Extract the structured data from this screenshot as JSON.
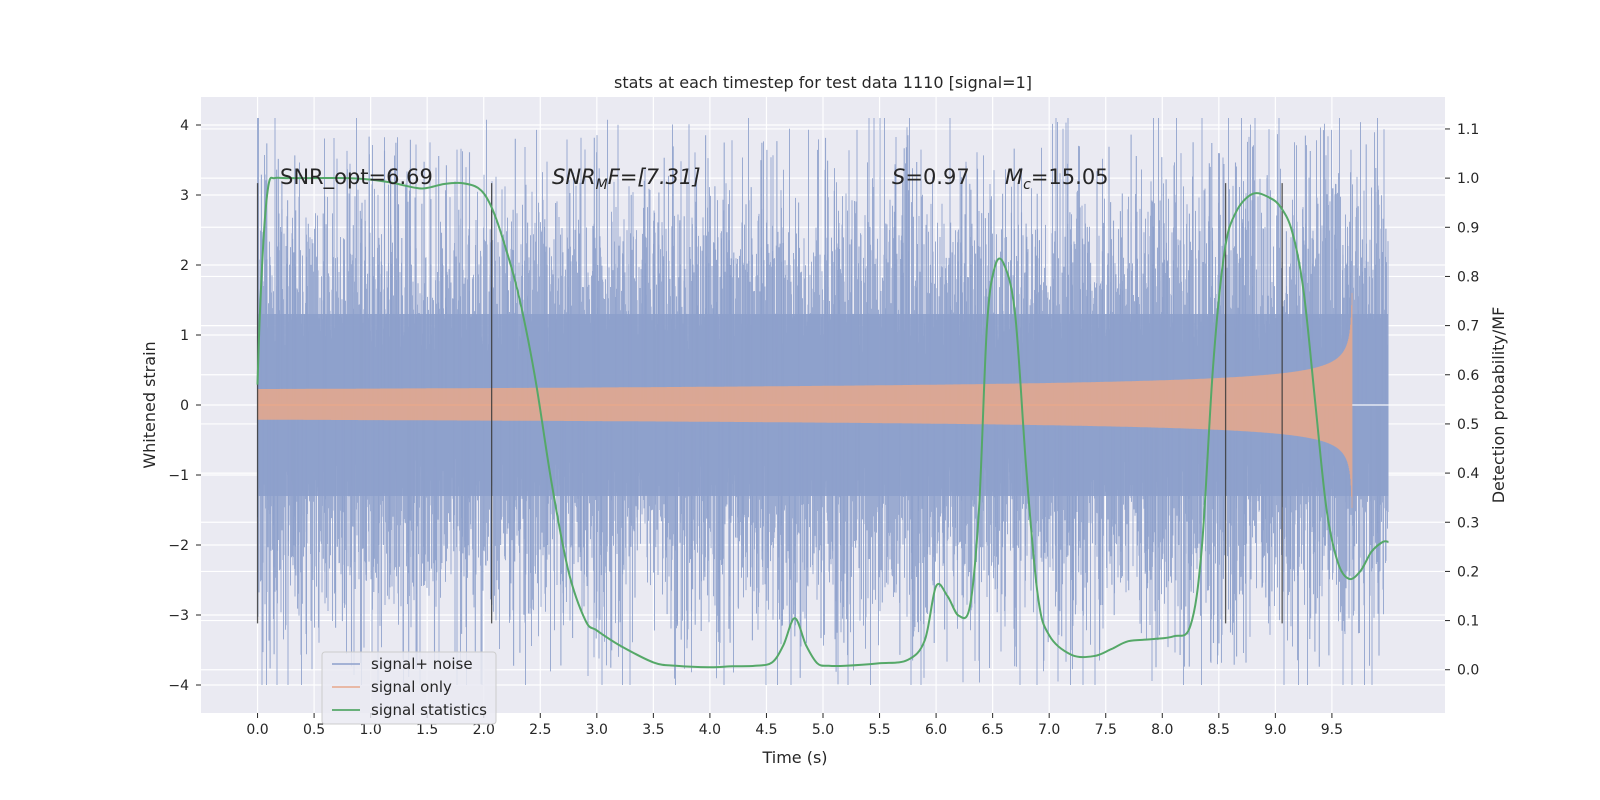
{
  "chart_data": {
    "type": "line",
    "title": "stats at each timestep for test data 1110 [signal=1]",
    "xlabel": "Time (s)",
    "ylabel": "Whitened strain",
    "y2label": "Detection probability/MF",
    "xlim": [
      -0.5,
      10.5
    ],
    "ylim": [
      -4.4,
      4.4
    ],
    "y2lim": [
      -0.088,
      1.165
    ],
    "x_ticks": [
      0.0,
      0.5,
      1.0,
      1.5,
      2.0,
      2.5,
      3.0,
      3.5,
      4.0,
      4.5,
      5.0,
      5.5,
      6.0,
      6.5,
      7.0,
      7.5,
      8.0,
      8.5,
      9.0,
      9.5
    ],
    "x_tick_labels": [
      "0.0",
      "0.5",
      "1.0",
      "1.5",
      "2.0",
      "2.5",
      "3.0",
      "3.5",
      "4.0",
      "4.5",
      "5.0",
      "5.5",
      "6.0",
      "6.5",
      "7.0",
      "7.5",
      "8.0",
      "8.5",
      "9.0",
      "9.5"
    ],
    "y_ticks": [
      -4,
      -3,
      -2,
      -1,
      0,
      1,
      2,
      3,
      4
    ],
    "y_tick_labels": [
      "−4",
      "−3",
      "−2",
      "−1",
      "0",
      "1",
      "2",
      "3",
      "4"
    ],
    "y2_ticks": [
      0.0,
      0.1,
      0.2,
      0.3,
      0.4,
      0.5,
      0.6,
      0.7,
      0.8,
      0.9,
      1.0,
      1.1
    ],
    "y2_tick_labels": [
      "0.0",
      "0.1",
      "0.2",
      "0.3",
      "0.4",
      "0.5",
      "0.6",
      "0.7",
      "0.8",
      "0.9",
      "1.0",
      "1.1"
    ],
    "grid": true,
    "legend_position": "lower-left",
    "annotations": {
      "snr_opt": "SNR_opt=6.69",
      "snr_mf_base": "SNR",
      "snr_mf_sub": "M",
      "snr_mf_tail": "F=[7.31]",
      "s_symbol": "S",
      "s_value": "=0.97",
      "mc_symbol": "M",
      "mc_sub": "c",
      "mc_value": "=15.05"
    },
    "vertical_markers": [
      0.0,
      2.07,
      8.56,
      9.06
    ],
    "series": [
      {
        "name": "signal+ noise",
        "color": "#8da0cb",
        "kind": "noise",
        "x_range": [
          0.0,
          10.0
        ],
        "typical_amplitude": 1.3,
        "peak_range": [
          -4.0,
          4.1
        ]
      },
      {
        "name": "signal only",
        "color": "#e8a88b",
        "kind": "chirp",
        "x_range": [
          0.0,
          9.68
        ],
        "peak_amplitude": 1.6,
        "merger_time": 9.68
      },
      {
        "name": "signal statistics",
        "color": "#55a868",
        "axis": "right",
        "x": [
          0.0,
          0.02,
          0.06,
          0.1,
          0.15,
          0.25,
          0.5,
          0.8,
          1.0,
          1.2,
          1.4,
          1.5,
          1.65,
          1.8,
          1.95,
          2.05,
          2.15,
          2.3,
          2.45,
          2.6,
          2.75,
          2.9,
          3.0,
          3.2,
          3.5,
          3.7,
          4.0,
          4.2,
          4.4,
          4.55,
          4.65,
          4.75,
          4.85,
          4.95,
          5.05,
          5.2,
          5.5,
          5.75,
          5.9,
          6.0,
          6.1,
          6.2,
          6.3,
          6.38,
          6.45,
          6.52,
          6.6,
          6.7,
          6.8,
          6.9,
          7.0,
          7.2,
          7.4,
          7.55,
          7.7,
          7.9,
          8.1,
          8.25,
          8.35,
          8.45,
          8.55,
          8.65,
          8.8,
          8.95,
          9.05,
          9.15,
          9.25,
          9.35,
          9.45,
          9.55,
          9.65,
          9.75,
          9.85,
          9.95,
          10.0
        ],
        "y": [
          0.58,
          0.72,
          0.9,
          0.99,
          1.0,
          1.0,
          1.0,
          1.0,
          0.997,
          0.99,
          0.98,
          0.98,
          0.988,
          0.99,
          0.98,
          0.95,
          0.89,
          0.77,
          0.6,
          0.38,
          0.2,
          0.1,
          0.08,
          0.05,
          0.015,
          0.008,
          0.005,
          0.007,
          0.008,
          0.015,
          0.05,
          0.105,
          0.05,
          0.013,
          0.008,
          0.008,
          0.013,
          0.02,
          0.06,
          0.17,
          0.15,
          0.11,
          0.13,
          0.33,
          0.7,
          0.82,
          0.825,
          0.72,
          0.4,
          0.15,
          0.07,
          0.03,
          0.028,
          0.042,
          0.058,
          0.062,
          0.068,
          0.09,
          0.25,
          0.62,
          0.85,
          0.93,
          0.968,
          0.96,
          0.94,
          0.89,
          0.77,
          0.55,
          0.33,
          0.22,
          0.185,
          0.2,
          0.24,
          0.26,
          0.26
        ]
      }
    ]
  }
}
